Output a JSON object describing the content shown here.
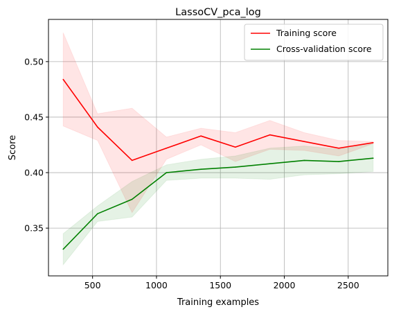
{
  "chart_data": {
    "type": "line",
    "title": "LassoCV_pca_log",
    "xlabel": "Training examples",
    "ylabel": "Score",
    "xlim": [
      155,
      2810
    ],
    "ylim": [
      0.307,
      0.538
    ],
    "xticks": [
      500,
      1000,
      1500,
      2000,
      2500
    ],
    "yticks": [
      0.35,
      0.4,
      0.45,
      0.5
    ],
    "xtick_labels": [
      "500",
      "1000",
      "1500",
      "2000",
      "2500"
    ],
    "ytick_labels": [
      "0.35",
      "0.40",
      "0.45",
      "0.50"
    ],
    "grid": true,
    "legend_position": "top-right",
    "x": [
      270,
      539,
      809,
      1078,
      1348,
      1617,
      1887,
      2156,
      2426,
      2695
    ],
    "series": [
      {
        "name": "Training score",
        "color": "#ff0000",
        "values": [
          0.484,
          0.441,
          0.411,
          0.422,
          0.433,
          0.423,
          0.434,
          0.428,
          0.422,
          0.427
        ],
        "band_upper": [
          0.526,
          0.453,
          0.458,
          0.432,
          0.44,
          0.436,
          0.447,
          0.436,
          0.429,
          0.428
        ],
        "band_lower": [
          0.442,
          0.429,
          0.364,
          0.412,
          0.425,
          0.41,
          0.421,
          0.42,
          0.415,
          0.426
        ],
        "band_color": "#ff0000"
      },
      {
        "name": "Cross-validation score",
        "color": "#008000",
        "values": [
          0.331,
          0.363,
          0.376,
          0.4,
          0.403,
          0.405,
          0.408,
          0.411,
          0.41,
          0.413
        ],
        "band_upper": [
          0.345,
          0.37,
          0.392,
          0.407,
          0.412,
          0.415,
          0.422,
          0.424,
          0.421,
          0.426
        ],
        "band_lower": [
          0.317,
          0.356,
          0.36,
          0.393,
          0.395,
          0.395,
          0.394,
          0.398,
          0.399,
          0.401
        ],
        "band_color": "#008000"
      }
    ]
  }
}
